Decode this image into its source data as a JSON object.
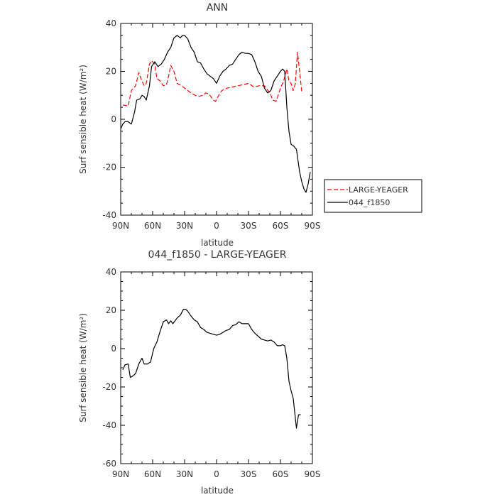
{
  "chart_data": [
    {
      "type": "line",
      "title": "ANN",
      "xlabel": "latitude",
      "ylabel": "Surf sensible heat (W/m²)",
      "xlim": [
        90,
        -90
      ],
      "ylim": [
        -40,
        40
      ],
      "x_tick_values": [
        90,
        60,
        30,
        0,
        -30,
        -60,
        -90
      ],
      "x_tick_labels": [
        "90N",
        "60N",
        "30N",
        "0",
        "30S",
        "60S",
        "90S"
      ],
      "y_tick_values": [
        -40,
        -20,
        0,
        20,
        40
      ],
      "y_tick_labels": [
        "-40",
        "-20",
        "0",
        "20",
        "40"
      ],
      "legend": "right",
      "grid": false,
      "series": [
        {
          "name": "LARGE-YEAGER",
          "color": "#ff0000",
          "dash": "dashed",
          "x": [
            88,
            83,
            80,
            76,
            73,
            71,
            68,
            66,
            63,
            61,
            58,
            56,
            53,
            50,
            47,
            45,
            43,
            40,
            37,
            33,
            30,
            27,
            24,
            20,
            17,
            13,
            10,
            7,
            3,
            1,
            -2,
            -5,
            -10,
            -15,
            -20,
            -25,
            -30,
            -35,
            -40,
            -45,
            -50,
            -53,
            -56,
            -60,
            -63,
            -66,
            -68,
            -70,
            -72,
            -74,
            -76,
            -78,
            -80
          ],
          "y": [
            6,
            5.5,
            12,
            14,
            19.5,
            17,
            14,
            15,
            23,
            24.5,
            23,
            17,
            16,
            14,
            14.5,
            18,
            22.5,
            20,
            15,
            14,
            13,
            12,
            11,
            10,
            9.5,
            10,
            11,
            10.5,
            8,
            7.5,
            10,
            12,
            13,
            13.5,
            14,
            14.5,
            15,
            13.5,
            14,
            14,
            11,
            8,
            7.5,
            13,
            16,
            21,
            16,
            15,
            12,
            15,
            28,
            20,
            11.5
          ]
        },
        {
          "name": "044_f1850",
          "color": "#000000",
          "dash": "solid",
          "x": [
            90,
            88,
            86,
            83,
            80,
            77,
            75,
            72,
            70,
            68,
            66,
            63,
            61,
            58,
            55,
            52,
            49,
            46,
            43,
            40,
            37,
            34,
            32,
            30,
            27,
            24,
            21,
            18,
            15,
            12,
            9,
            6,
            3,
            0,
            -3,
            -6,
            -9,
            -12,
            -15,
            -18,
            -21,
            -24,
            -27,
            -30,
            -33,
            -36,
            -39,
            -42,
            -45,
            -48,
            -51,
            -54,
            -57,
            -60,
            -62,
            -64,
            -66,
            -68,
            -70,
            -72,
            -75,
            -78,
            -80,
            -82,
            -84,
            -86,
            -88
          ],
          "y": [
            -4,
            -2,
            -1,
            -1,
            -2,
            3,
            8,
            8.5,
            10,
            9.5,
            8,
            14,
            22,
            24,
            22,
            23,
            25,
            28,
            30,
            34,
            35,
            34,
            35,
            35,
            33.5,
            30,
            28,
            24,
            23.5,
            21,
            19,
            18,
            17,
            15,
            18,
            20,
            21,
            22.5,
            23,
            25,
            27,
            28,
            27.5,
            27.5,
            27,
            24,
            20,
            18,
            13,
            11,
            12,
            16,
            18,
            20,
            21,
            20,
            5,
            -5,
            -10.5,
            -11,
            -12.5,
            -22,
            -26,
            -29,
            -30.5,
            -27,
            -22
          ]
        }
      ]
    },
    {
      "type": "line",
      "title": "044_f1850 - LARGE-YEAGER",
      "xlabel": "latitude",
      "ylabel": "Surf sensible heat (W/m²)",
      "xlim": [
        90,
        -90
      ],
      "ylim": [
        -60,
        40
      ],
      "x_tick_values": [
        90,
        60,
        30,
        0,
        -30,
        -60,
        -90
      ],
      "x_tick_labels": [
        "90N",
        "60N",
        "30N",
        "0",
        "30S",
        "60S",
        "90S"
      ],
      "y_tick_values": [
        -60,
        -40,
        -20,
        0,
        20,
        40
      ],
      "y_tick_labels": [
        "-60",
        "-40",
        "-20",
        "0",
        "20",
        "40"
      ],
      "grid": false,
      "series": [
        {
          "color": "#000000",
          "dash": "solid",
          "x": [
            88,
            86,
            83,
            81,
            79,
            76,
            73,
            70,
            68,
            65,
            62,
            59,
            56,
            53,
            50,
            47,
            45,
            43,
            41,
            39,
            37,
            34,
            31,
            29,
            27,
            24,
            21,
            18,
            15,
            12,
            9,
            6,
            3,
            0,
            -3,
            -6,
            -9,
            -12,
            -15,
            -18,
            -21,
            -24,
            -27,
            -30,
            -33,
            -36,
            -39,
            -42,
            -45,
            -48,
            -51,
            -54,
            -57,
            -60,
            -62,
            -64,
            -66,
            -68,
            -70,
            -72,
            -75,
            -77,
            -79
          ],
          "y": [
            -11,
            -8.5,
            -8,
            -15,
            -14.5,
            -13,
            -8,
            -5,
            -8,
            -8,
            -7,
            0,
            3.5,
            9,
            14,
            15,
            13,
            14.5,
            13,
            14.5,
            16,
            17.5,
            20.5,
            20.5,
            19.5,
            17,
            15,
            14,
            11,
            10,
            8.5,
            8,
            7.5,
            7,
            7.5,
            8.5,
            9.5,
            10,
            12,
            12.5,
            14,
            13,
            13,
            13,
            10,
            8,
            6.5,
            5,
            4.5,
            4,
            4.5,
            3.5,
            1.5,
            1.5,
            2,
            1.5,
            -5,
            -17,
            -22,
            -26,
            -41.5,
            -34.5,
            -34.5
          ]
        }
      ]
    }
  ]
}
